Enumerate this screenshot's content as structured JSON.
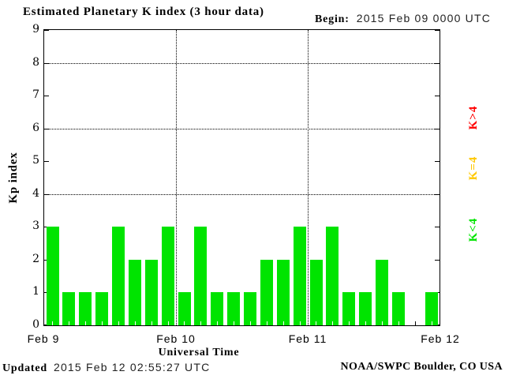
{
  "title": "Estimated Planetary K index (3 hour data)",
  "begin": {
    "label": "Begin:",
    "value": "2015 Feb 09 0000 UTC"
  },
  "footer": {
    "updated_label": "Updated",
    "updated_value": "2015 Feb 12 02:55:27 UTC",
    "credit": "NOAA/SWPC Boulder, CO USA"
  },
  "chart_data": {
    "type": "bar",
    "title": "Estimated Planetary K index (3 hour data)",
    "xlabel": "Universal Time",
    "ylabel": "Kp index",
    "ylim": [
      0,
      9
    ],
    "y_ticks": [
      0,
      1,
      2,
      3,
      4,
      5,
      6,
      7,
      8,
      9
    ],
    "y_gridlines": [
      4,
      6,
      8
    ],
    "x_tick_labels": [
      "Feb 9",
      "Feb 10",
      "Feb 11",
      "Feb 12"
    ],
    "x_day_dividers": [
      "Feb 10",
      "Feb 11"
    ],
    "bin_hours": 3,
    "grid": "dotted",
    "legend_position": "right",
    "categories": [
      "Feb 9 00-03",
      "Feb 9 03-06",
      "Feb 9 06-09",
      "Feb 9 09-12",
      "Feb 9 12-15",
      "Feb 9 15-18",
      "Feb 9 18-21",
      "Feb 9 21-24",
      "Feb 10 00-03",
      "Feb 10 03-06",
      "Feb 10 06-09",
      "Feb 10 09-12",
      "Feb 10 12-15",
      "Feb 10 15-18",
      "Feb 10 18-21",
      "Feb 10 21-24",
      "Feb 11 00-03",
      "Feb 11 03-06",
      "Feb 11 06-09",
      "Feb 11 09-12",
      "Feb 11 12-15",
      "Feb 11 15-18",
      "Feb 11 18-21",
      "Feb 11 21-24"
    ],
    "series": [
      {
        "name": "Kp",
        "values": [
          3,
          1,
          1,
          1,
          3,
          2,
          2,
          3,
          1,
          3,
          1,
          1,
          1,
          2,
          2,
          3,
          2,
          3,
          1,
          1,
          2,
          1,
          0,
          1
        ]
      }
    ],
    "bar_color": "#00e400",
    "colors": {
      "below4": "#00e400",
      "equal4": "#ffc800",
      "above4": "#ff0000"
    },
    "legend": [
      {
        "label": "K>4",
        "color": "#ff0000"
      },
      {
        "label": "K=4",
        "color": "#ffc800"
      },
      {
        "label": "K<4",
        "color": "#00e400"
      }
    ]
  }
}
